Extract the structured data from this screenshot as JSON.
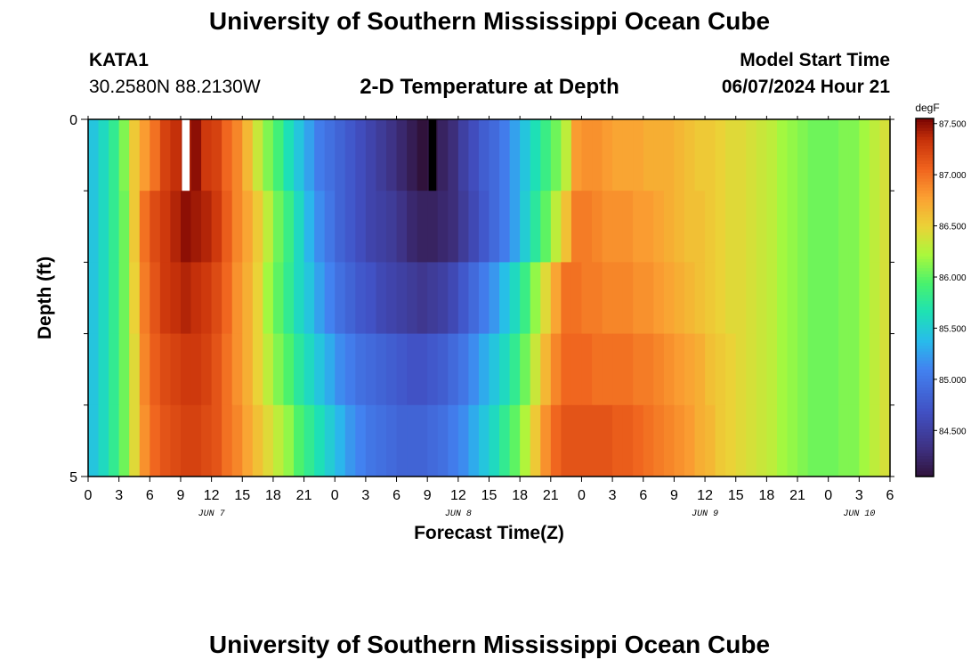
{
  "header": {
    "title": "University of Southern Mississippi Ocean Cube",
    "station_id": "KATA1",
    "station_coords": "30.2580N  88.2130W",
    "product_name": "2-D Temperature at Depth",
    "model_start_label": "Model Start Time",
    "model_start_value": "06/07/2024 Hour 21"
  },
  "footer": {
    "title": "University of Southern Mississippi Ocean Cube"
  },
  "colors": {
    "frame": "#000000",
    "background": "#ffffff",
    "missing_high": "#ffffff",
    "missing_low": "#000000"
  },
  "chart_data": {
    "type": "heatmap",
    "title": "2-D Temperature at Depth",
    "xlabel": "Forecast Time(Z)",
    "ylabel": "Depth (ft)",
    "y_range": [
      0,
      5
    ],
    "y_tick_labels": [
      "0",
      "5"
    ],
    "y_minor_ticks": [
      1,
      2,
      3,
      4
    ],
    "x_range_hours": [
      0,
      78
    ],
    "x_tick_labels": [
      "0",
      "3",
      "6",
      "9",
      "12",
      "15",
      "18",
      "21",
      "0",
      "3",
      "6",
      "9",
      "12",
      "15",
      "18",
      "21",
      "0",
      "3",
      "6",
      "9",
      "12",
      "15",
      "18",
      "21",
      "0",
      "3",
      "6"
    ],
    "date_labels": [
      {
        "label": "JUN 7",
        "hour": 12
      },
      {
        "label": "JUN 8",
        "hour": 36
      },
      {
        "label": "JUN 9",
        "hour": 60
      },
      {
        "label": "JUN 10",
        "hour": 75
      }
    ],
    "colorbar": {
      "unit": "degF",
      "min": 84.05,
      "max": 87.55,
      "tick_values": [
        84.5,
        85.0,
        85.5,
        86.0,
        86.5,
        87.0,
        87.5
      ],
      "tick_labels": [
        "84.500",
        "85.000",
        "85.500",
        "86.000",
        "86.500",
        "87.000",
        "87.500"
      ]
    },
    "depths_ft": [
      0,
      1,
      2,
      3,
      4,
      5
    ],
    "time_hours": [
      0,
      1,
      2,
      3,
      4,
      5,
      6,
      7,
      8,
      9,
      10,
      11,
      12,
      13,
      14,
      15,
      16,
      17,
      18,
      19,
      20,
      21,
      22,
      23,
      24,
      25,
      26,
      27,
      28,
      29,
      30,
      31,
      32,
      33,
      34,
      35,
      36,
      37,
      38,
      39,
      40,
      41,
      42,
      43,
      44,
      45,
      46,
      47,
      48,
      49,
      50,
      51,
      52,
      53,
      54,
      55,
      56,
      57,
      58,
      59,
      60,
      61,
      62,
      63,
      64,
      65,
      66,
      67,
      68,
      69,
      70,
      71,
      72,
      73,
      74,
      75,
      76,
      77
    ],
    "temperature_degF": [
      [
        85.45,
        85.6,
        85.8,
        86.1,
        86.55,
        86.8,
        87.0,
        87.25,
        87.35,
        87.4,
        87.5,
        87.3,
        87.25,
        87.05,
        86.9,
        86.65,
        86.35,
        86.1,
        85.9,
        85.65,
        85.45,
        85.25,
        85.05,
        84.95,
        84.85,
        84.75,
        84.65,
        84.55,
        84.45,
        84.35,
        84.25,
        84.15,
        84.05,
        84.1,
        84.2,
        84.3,
        84.5,
        84.65,
        84.8,
        84.9,
        85.05,
        85.25,
        85.45,
        85.65,
        85.85,
        86.05,
        86.3,
        86.8,
        86.85,
        86.85,
        86.8,
        86.75,
        86.75,
        86.75,
        86.7,
        86.7,
        86.7,
        86.65,
        86.6,
        86.55,
        86.55,
        86.5,
        86.45,
        86.45,
        86.4,
        86.35,
        86.3,
        86.2,
        86.15,
        86.1,
        86.05,
        86.05,
        86.05,
        86.1,
        86.1,
        86.2,
        86.3,
        86.4
      ],
      [
        85.45,
        85.6,
        85.8,
        86.05,
        86.55,
        87.0,
        87.2,
        87.3,
        87.4,
        87.5,
        87.45,
        87.4,
        87.3,
        87.1,
        86.9,
        86.75,
        86.55,
        86.3,
        86.05,
        85.85,
        85.6,
        85.35,
        85.15,
        85.0,
        84.85,
        84.75,
        84.65,
        84.55,
        84.5,
        84.45,
        84.35,
        84.25,
        84.2,
        84.2,
        84.25,
        84.3,
        84.45,
        84.6,
        84.75,
        84.9,
        85.05,
        85.25,
        85.5,
        85.75,
        86.0,
        86.3,
        86.6,
        86.95,
        86.95,
        86.9,
        86.85,
        86.85,
        86.85,
        86.8,
        86.8,
        86.75,
        86.7,
        86.65,
        86.6,
        86.6,
        86.55,
        86.5,
        86.45,
        86.45,
        86.4,
        86.35,
        86.3,
        86.2,
        86.15,
        86.1,
        86.05,
        86.05,
        86.05,
        86.1,
        86.1,
        86.2,
        86.3,
        86.4
      ],
      [
        85.45,
        85.6,
        85.8,
        86.05,
        86.5,
        86.95,
        87.15,
        87.3,
        87.35,
        87.4,
        87.35,
        87.3,
        87.2,
        87.05,
        86.85,
        86.7,
        86.5,
        86.2,
        86.0,
        85.8,
        85.6,
        85.45,
        85.25,
        85.1,
        84.95,
        84.85,
        84.75,
        84.7,
        84.6,
        84.55,
        84.5,
        84.45,
        84.4,
        84.45,
        84.5,
        84.6,
        84.75,
        84.9,
        85.05,
        85.2,
        85.4,
        85.6,
        85.85,
        86.15,
        86.45,
        86.75,
        87.0,
        87.0,
        86.95,
        86.95,
        86.9,
        86.9,
        86.9,
        86.85,
        86.85,
        86.8,
        86.75,
        86.7,
        86.65,
        86.6,
        86.55,
        86.5,
        86.45,
        86.45,
        86.4,
        86.35,
        86.3,
        86.2,
        86.15,
        86.1,
        86.05,
        86.05,
        86.05,
        86.1,
        86.1,
        86.2,
        86.3,
        86.4
      ],
      [
        85.45,
        85.6,
        85.8,
        86.05,
        86.45,
        86.9,
        87.1,
        87.2,
        87.25,
        87.3,
        87.3,
        87.25,
        87.15,
        87.0,
        86.85,
        86.7,
        86.5,
        86.3,
        86.1,
        85.95,
        85.75,
        85.6,
        85.45,
        85.3,
        85.15,
        85.05,
        84.95,
        84.9,
        84.85,
        84.8,
        84.75,
        84.7,
        84.7,
        84.75,
        84.8,
        84.9,
        85.0,
        85.15,
        85.3,
        85.45,
        85.6,
        85.8,
        86.05,
        86.35,
        86.65,
        86.9,
        87.05,
        87.05,
        87.05,
        87.0,
        87.0,
        87.0,
        87.0,
        86.95,
        86.95,
        86.9,
        86.85,
        86.8,
        86.75,
        86.7,
        86.6,
        86.55,
        86.5,
        86.45,
        86.4,
        86.35,
        86.3,
        86.2,
        86.15,
        86.1,
        86.05,
        86.05,
        86.05,
        86.1,
        86.1,
        86.2,
        86.3,
        86.4
      ],
      [
        85.45,
        85.6,
        85.8,
        86.05,
        86.45,
        86.85,
        87.05,
        87.15,
        87.2,
        87.25,
        87.25,
        87.2,
        87.15,
        87.0,
        86.9,
        86.75,
        86.6,
        86.45,
        86.3,
        86.15,
        85.95,
        85.8,
        85.65,
        85.5,
        85.35,
        85.2,
        85.1,
        85.0,
        84.95,
        84.9,
        84.85,
        84.85,
        84.85,
        84.9,
        84.95,
        85.05,
        85.15,
        85.3,
        85.45,
        85.6,
        85.8,
        86.0,
        86.25,
        86.55,
        86.85,
        87.05,
        87.15,
        87.15,
        87.15,
        87.15,
        87.15,
        87.1,
        87.1,
        87.05,
        87.0,
        86.95,
        86.9,
        86.85,
        86.8,
        86.7,
        86.65,
        86.55,
        86.5,
        86.45,
        86.4,
        86.35,
        86.3,
        86.2,
        86.15,
        86.1,
        86.05,
        86.05,
        86.05,
        86.1,
        86.1,
        86.2,
        86.3,
        86.4
      ]
    ],
    "missing_cells": [
      {
        "time_hour": 9,
        "depth_band": 0,
        "color": "#ffffff"
      },
      {
        "time_hour": 33,
        "depth_band": 0,
        "color": "#000000"
      }
    ]
  }
}
